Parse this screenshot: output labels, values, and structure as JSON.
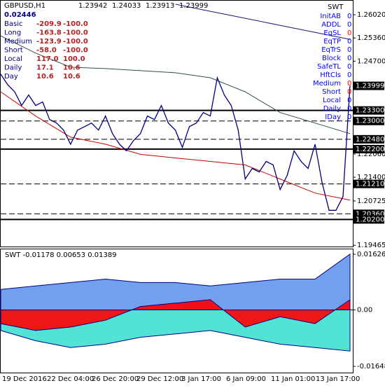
{
  "window": {
    "symbol": "GBPUSD,H1",
    "ohlc": [
      "1.23942",
      "1.24033",
      "1.23913",
      "1.23999"
    ],
    "total": "0.02446",
    "stats": [
      {
        "label": "Basic",
        "a": "-209.9",
        "b": "-100.0"
      },
      {
        "label": "Long",
        "a": "-163.8",
        "b": "-100.0"
      },
      {
        "label": "Medium",
        "a": "-123.9",
        "b": "-100.0"
      },
      {
        "label": "Short",
        "a": "-58.0",
        "b": "-100.0"
      },
      {
        "label": "Local",
        "a": "117.0",
        "b": "100.0"
      },
      {
        "label": "Daily",
        "a": "17.1",
        "b": "10.6"
      },
      {
        "label": "Day",
        "a": "10.6",
        "b": "10.6"
      }
    ],
    "ea_name": "SWT",
    "flags": [
      {
        "label": "InitAB",
        "value": "0",
        "color": "#0000ff"
      },
      {
        "label": "ADDL",
        "value": "0",
        "color": "#0000ff"
      },
      {
        "label": "EqSL",
        "value": "0",
        "color": "#ff0000"
      },
      {
        "label": "EqTP",
        "value": "0",
        "color": "#0000ff"
      },
      {
        "label": "EqTrS",
        "value": "0",
        "color": "#0000ff"
      },
      {
        "label": "Block",
        "value": "0",
        "color": "#0000ff"
      },
      {
        "label": "SafeTL",
        "value": "0",
        "color": "#0000ff"
      },
      {
        "label": "HftCls",
        "value": "0",
        "color": "#0000ff"
      },
      {
        "label": "Medium",
        "value": "0",
        "color": "#ff0000"
      },
      {
        "label": "Short",
        "value": "0",
        "color": "#ff0000"
      },
      {
        "label": "Local",
        "value": "0",
        "color": "#0000ff"
      },
      {
        "label": "Daily",
        "value": "0",
        "color": "#0000ff"
      },
      {
        "label": "IDay",
        "value": "0",
        "color": "#0000ff"
      }
    ],
    "x_labels": [
      "19 Dec 2016",
      "22 Dec 04:00",
      "26 Dec 20:00",
      "29 Dec 12:00",
      "3 Jan 17:00",
      "6 Jan 09:00",
      "11 Jan 01:00",
      "13 Jan 17:00"
    ]
  },
  "chart_data": [
    {
      "type": "line",
      "ylim": [
        1.1943,
        1.2642
      ],
      "yticks": [
        {
          "value": 1.2602,
          "label": "1.26020"
        },
        {
          "value": 1.2536,
          "label": "1.25360"
        },
        {
          "value": 1.247,
          "label": "1.24700"
        },
        {
          "value": 1.2206,
          "label": "1.22060"
        },
        {
          "value": 1.214,
          "label": "1.21400"
        },
        {
          "value": 1.20725,
          "label": "1.20725"
        },
        {
          "value": 1.19465,
          "label": "1.19465"
        }
      ],
      "levels": [
        {
          "value": 1.23999,
          "label": "1.23999",
          "style": "none"
        },
        {
          "value": 1.233,
          "label": "1.23300",
          "style": "solid"
        },
        {
          "value": 1.23,
          "label": "1.23000",
          "style": "dashed"
        },
        {
          "value": 1.2248,
          "label": "1.22480",
          "style": "dashed"
        },
        {
          "value": 1.222,
          "label": "1.22200",
          "style": "solid"
        },
        {
          "value": 1.2121,
          "label": "1.21210",
          "style": "dashed"
        },
        {
          "value": 1.2036,
          "label": "1.20360",
          "style": "dashed"
        },
        {
          "value": 1.202,
          "label": "1.20200",
          "style": "solid"
        }
      ],
      "series": [
        {
          "color": "#2f4f4f",
          "values": [
            1.2542,
            1.2493,
            1.2453,
            1.2449,
            1.2443,
            1.2437,
            1.2423,
            1.2383,
            1.2324,
            1.2294,
            1.2264
          ]
        },
        {
          "color": "#191970",
          "values": [
            null,
            null,
            null,
            null,
            null,
            1.2632,
            1.2612,
            1.2592,
            1.2572,
            1.2552,
            1.2532
          ]
        },
        {
          "color": "#cc0000",
          "values": [
            1.2383,
            1.2314,
            1.2254,
            1.2234,
            1.2205,
            1.2195,
            1.2185,
            1.2175,
            1.2135,
            1.2095,
            1.2075
          ]
        },
        {
          "color": "#000080",
          "values": [
            1.2433,
            1.2403,
            1.2383,
            1.2344,
            1.2374,
            1.2344,
            1.2354,
            1.2304,
            1.2294,
            1.2274,
            1.2234,
            1.2274,
            1.2284,
            1.2294,
            1.2274,
            1.2314,
            1.2264,
            1.2234,
            1.2215,
            1.2244,
            1.2264,
            1.2314,
            1.2304,
            1.2344,
            1.2294,
            1.2274,
            1.2225,
            1.2284,
            1.2294,
            1.2324,
            1.2314,
            1.2423,
            1.2374,
            1.2344,
            1.2274,
            1.2135,
            1.2165,
            1.2155,
            1.2185,
            1.2175,
            1.2105,
            1.2145,
            1.2215,
            1.2185,
            1.2165,
            1.2234,
            1.2125,
            1.2046,
            1.2046,
            1.2085,
            1.24
          ]
        }
      ]
    },
    {
      "type": "area",
      "title": "SWT -0.01178 0.00653 0.01389",
      "ylim": [
        -0.0183,
        0.0177
      ],
      "yticks": [
        0.01626,
        {
          "value": 0,
          "label": "0.00"
        },
        -0.01648
      ],
      "series": [
        {
          "color": "#6495ed",
          "values": [
            0.006,
            0.007,
            0.008,
            0.009,
            0.008,
            0.008,
            0.007,
            0.008,
            0.009,
            0.009,
            0.0163
          ]
        },
        {
          "color": "#40e0d0",
          "values": [
            -0.006,
            -0.009,
            -0.011,
            -0.01,
            -0.008,
            -0.007,
            -0.006,
            -0.008,
            -0.01,
            -0.011,
            -0.012
          ]
        },
        {
          "color": "#ff0000",
          "values": [
            -0.004,
            -0.006,
            -0.005,
            -0.003,
            0.001,
            0.002,
            0.003,
            -0.005,
            -0.002,
            -0.004,
            0.003
          ]
        }
      ]
    }
  ]
}
